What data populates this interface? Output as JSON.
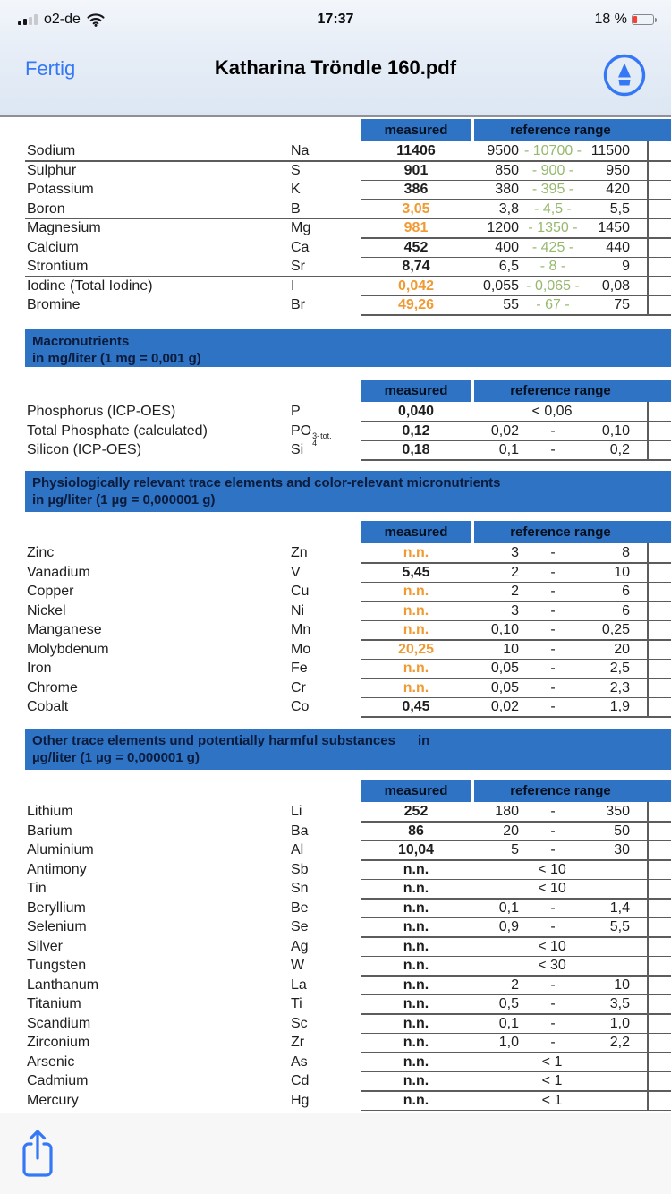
{
  "status_bar": {
    "carrier": "o2-de",
    "time": "17:37",
    "battery_percent": "18 %",
    "signal_icon": "cellular-signal-icon",
    "wifi_icon": "wifi-icon",
    "battery_icon": "battery-icon"
  },
  "nav_bar": {
    "done_label": "Fertig",
    "title": "Katharina Tröndle 160.pdf",
    "markup_icon": "markup-pen-icon"
  },
  "toolbar": {
    "share_icon": "share-icon"
  },
  "colors": {
    "accent_blue": "#3478F6",
    "table_header_blue": "#2E73C4",
    "banner_text": "#0B1B3C",
    "reference_green": "#96B96E",
    "out_of_range_orange": "#F09A33",
    "battery_red": "#FF3B30"
  },
  "table_header": {
    "measured": "measured",
    "reference_range": "reference range"
  },
  "sections": [
    {
      "rows": [
        {
          "name": "Sodium",
          "sym": "Na",
          "measured": "11406",
          "warn": false,
          "low": "9500",
          "mid": "- 10700 -",
          "high": "11500",
          "green": true,
          "group": true
        },
        {
          "name": "Sulphur",
          "sym": "S",
          "measured": "901",
          "warn": false,
          "low": "850",
          "mid": "- 900 -",
          "high": "950",
          "green": true
        },
        {
          "name": "Potassium",
          "sym": "K",
          "measured": "386",
          "warn": false,
          "low": "380",
          "mid": "- 395 -",
          "high": "420",
          "green": true
        },
        {
          "name": "Boron",
          "sym": "B",
          "measured": "3,05",
          "warn": true,
          "low": "3,8",
          "mid": "- 4,5 -",
          "high": "5,5",
          "green": true,
          "group": true
        },
        {
          "name": "Magnesium",
          "sym": "Mg",
          "measured": "981",
          "warn": true,
          "low": "1200",
          "mid": "- 1350 -",
          "high": "1450",
          "green": true
        },
        {
          "name": "Calcium",
          "sym": "Ca",
          "measured": "452",
          "warn": false,
          "low": "400",
          "mid": "- 425 -",
          "high": "440",
          "green": true
        },
        {
          "name": "Strontium",
          "sym": "Sr",
          "measured": "8,74",
          "warn": false,
          "low": "6,5",
          "mid": "- 8 -",
          "high": "9",
          "green": true,
          "group": true
        },
        {
          "name": "Iodine (Total Iodine)",
          "sym": "I",
          "measured": "0,042",
          "warn": true,
          "low": "0,055",
          "mid": "- 0,065 -",
          "high": "0,08",
          "green": true
        },
        {
          "name": "Bromine",
          "sym": "Br",
          "measured": "49,26",
          "warn": true,
          "low": "55",
          "mid": "- 67 -",
          "high": "75",
          "green": true
        }
      ]
    },
    {
      "banner_line1": "Macronutrients",
      "banner_line2": "in mg/liter (1 mg = 0,001 g)",
      "rows": [
        {
          "name": "Phosphorus (ICP-OES)",
          "sym": "P",
          "measured": "0,040",
          "limit": "< 0,06"
        },
        {
          "name": "Total Phosphate (calculated)",
          "sym": "PO",
          "sym_sup": "3-",
          "sym_sub": "4",
          "sym_sub2": "tot.",
          "measured": "0,12",
          "low": "0,02",
          "mid": "-",
          "high": "0,10"
        },
        {
          "name": "Silicon (ICP-OES)",
          "sym": "Si",
          "measured": "0,18",
          "low": "0,1",
          "mid": "-",
          "high": "0,2"
        }
      ]
    },
    {
      "banner_line1": "Physiologically relevant trace elements and color-relevant micronutrients",
      "banner_line2": "in µg/liter (1 µg = 0,000001 g)",
      "rows": [
        {
          "name": "Zinc",
          "sym": "Zn",
          "measured": "n.n.",
          "warn": true,
          "low": "3",
          "mid": "-",
          "high": "8"
        },
        {
          "name": "Vanadium",
          "sym": "V",
          "measured": "5,45",
          "low": "2",
          "mid": "-",
          "high": "10"
        },
        {
          "name": "Copper",
          "sym": "Cu",
          "measured": "n.n.",
          "warn": true,
          "low": "2",
          "mid": "-",
          "high": "6"
        },
        {
          "name": "Nickel",
          "sym": "Ni",
          "measured": "n.n.",
          "warn": true,
          "low": "3",
          "mid": "-",
          "high": "6"
        },
        {
          "name": "Manganese",
          "sym": "Mn",
          "measured": "n.n.",
          "warn": true,
          "low": "0,10",
          "mid": "-",
          "high": "0,25"
        },
        {
          "name": "Molybdenum",
          "sym": "Mo",
          "measured": "20,25",
          "warn": true,
          "low": "10",
          "mid": "-",
          "high": "20"
        },
        {
          "name": "Iron",
          "sym": "Fe",
          "measured": "n.n.",
          "warn": true,
          "low": "0,05",
          "mid": "-",
          "high": "2,5"
        },
        {
          "name": "Chrome",
          "sym": "Cr",
          "measured": "n.n.",
          "warn": true,
          "low": "0,05",
          "mid": "-",
          "high": "2,3"
        },
        {
          "name": "Cobalt",
          "sym": "Co",
          "measured": "0,45",
          "low": "0,02",
          "mid": "-",
          "high": "1,9"
        }
      ]
    },
    {
      "banner_line1": "Other trace elements und potentially harmful substances      in",
      "banner_line2": "µg/liter (1 µg = 0,000001 g)",
      "rows": [
        {
          "name": "Lithium",
          "sym": "Li",
          "measured": "252",
          "low": "180",
          "mid": "-",
          "high": "350"
        },
        {
          "name": "Barium",
          "sym": "Ba",
          "measured": "86",
          "low": "20",
          "mid": "-",
          "high": "50"
        },
        {
          "name": "Aluminium",
          "sym": "Al",
          "measured": "10,04",
          "low": "5",
          "mid": "-",
          "high": "30"
        },
        {
          "name": "Antimony",
          "sym": "Sb",
          "measured": "n.n.",
          "limit": "< 10"
        },
        {
          "name": "Tin",
          "sym": "Sn",
          "measured": "n.n.",
          "limit": "< 10"
        },
        {
          "name": "Beryllium",
          "sym": "Be",
          "measured": "n.n.",
          "low": "0,1",
          "mid": "-",
          "high": "1,4"
        },
        {
          "name": "Selenium",
          "sym": "Se",
          "measured": "n.n.",
          "low": "0,9",
          "mid": "-",
          "high": "5,5"
        },
        {
          "name": "Silver",
          "sym": "Ag",
          "measured": "n.n.",
          "limit": "< 10"
        },
        {
          "name": "Tungsten",
          "sym": "W",
          "measured": "n.n.",
          "limit": "< 30"
        },
        {
          "name": "Lanthanum",
          "sym": "La",
          "measured": "n.n.",
          "low": "2",
          "mid": "-",
          "high": "10"
        },
        {
          "name": "Titanium",
          "sym": "Ti",
          "measured": "n.n.",
          "low": "0,5",
          "mid": "-",
          "high": "3,5"
        },
        {
          "name": "Scandium",
          "sym": "Sc",
          "measured": "n.n.",
          "low": "0,1",
          "mid": "-",
          "high": "1,0"
        },
        {
          "name": "Zirconium",
          "sym": "Zr",
          "measured": "n.n.",
          "low": "1,0",
          "mid": "-",
          "high": "2,2"
        },
        {
          "name": "Arsenic",
          "sym": "As",
          "measured": "n.n.",
          "limit": "< 1"
        },
        {
          "name": "Cadmium",
          "sym": "Cd",
          "measured": "n.n.",
          "limit": "< 1"
        },
        {
          "name": "Mercury",
          "sym": "Hg",
          "measured": "n.n.",
          "limit": "< 1"
        }
      ]
    }
  ]
}
